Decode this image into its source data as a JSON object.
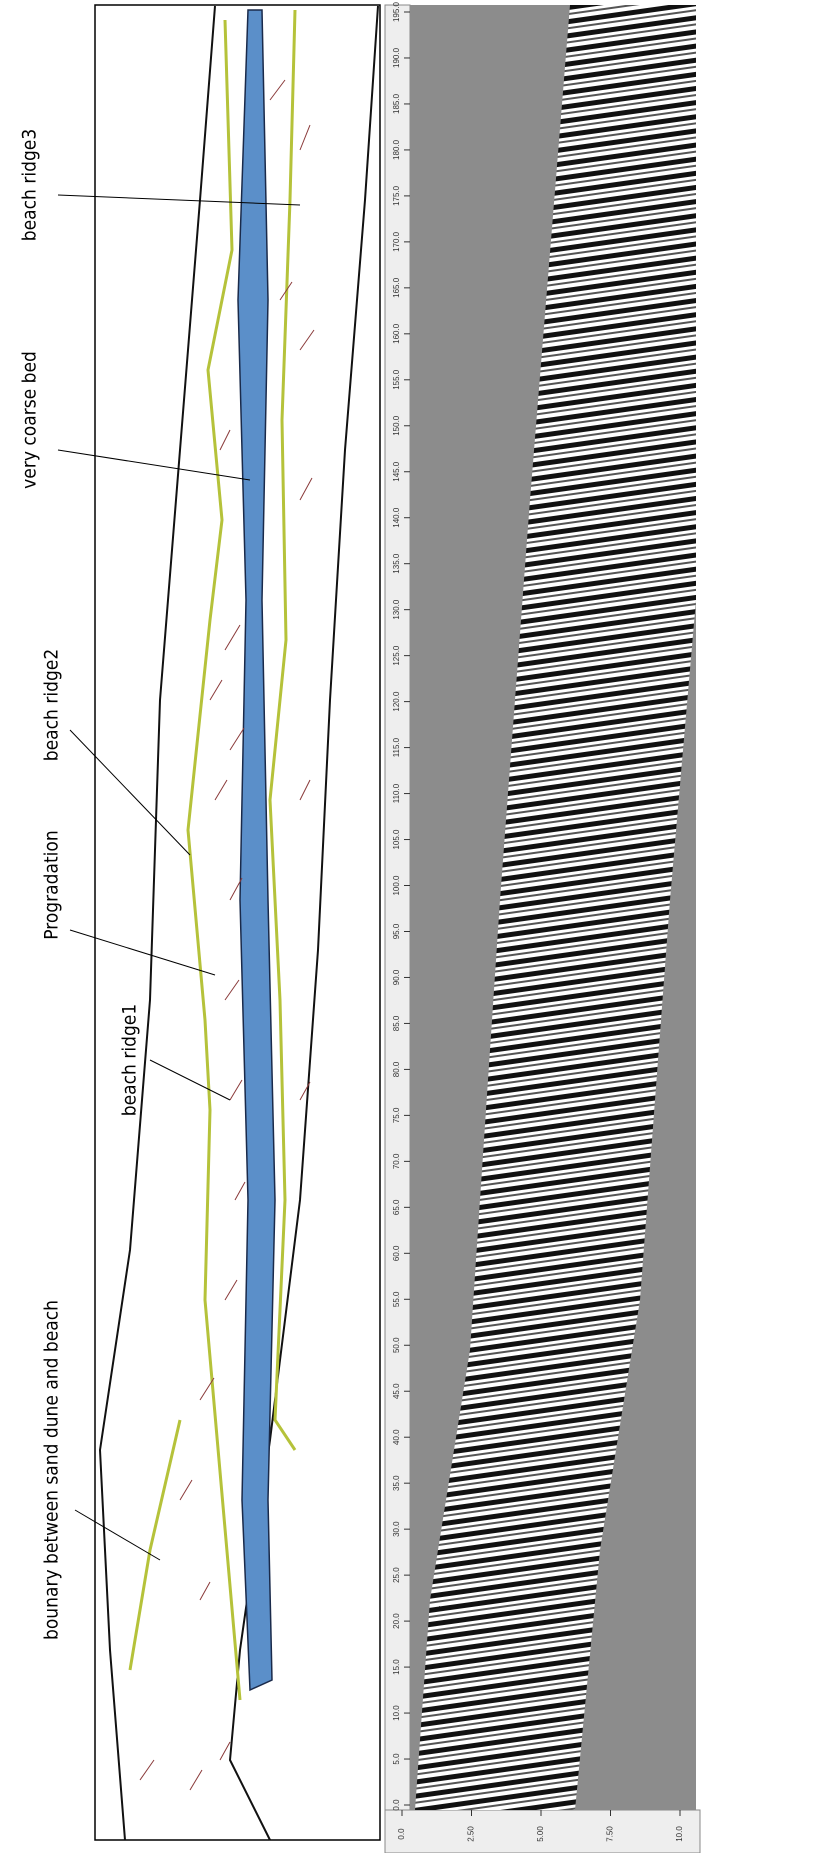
{
  "labels": [
    "beach ridge3",
    "very coarse bed",
    "beach ridge2",
    "Progradation",
    "bounary between sand dune and beach",
    "beach ridge1"
  ],
  "profile": {
    "distance_ticks": [
      {
        "value": 0,
        "label": "0.0"
      },
      {
        "value": 5,
        "label": "5.0"
      },
      {
        "value": 10,
        "label": "10.0"
      },
      {
        "value": 15,
        "label": "15.0"
      },
      {
        "value": 20,
        "label": "20.0"
      },
      {
        "value": 25,
        "label": "25.0"
      },
      {
        "value": 30,
        "label": "30.0"
      },
      {
        "value": 35,
        "label": "35.0"
      },
      {
        "value": 40,
        "label": "40.0"
      },
      {
        "value": 45,
        "label": "45.0"
      },
      {
        "value": 50,
        "label": "50.0"
      },
      {
        "value": 55,
        "label": "55.0"
      },
      {
        "value": 60,
        "label": "60.0"
      },
      {
        "value": 65,
        "label": "65.0"
      },
      {
        "value": 70,
        "label": "70.0"
      },
      {
        "value": 75,
        "label": "75.0"
      },
      {
        "value": 80,
        "label": "80.0"
      },
      {
        "value": 85,
        "label": "85.0"
      },
      {
        "value": 90,
        "label": "90.0"
      },
      {
        "value": 95,
        "label": "95.0"
      },
      {
        "value": 100,
        "label": "100.0"
      },
      {
        "value": 105,
        "label": "105.0"
      },
      {
        "value": 110,
        "label": "110.0"
      },
      {
        "value": 115,
        "label": "115.0"
      },
      {
        "value": 120,
        "label": "120.0"
      },
      {
        "value": 125,
        "label": "125.0"
      },
      {
        "value": 130,
        "label": "130.0"
      },
      {
        "value": 135,
        "label": "135.0"
      },
      {
        "value": 140,
        "label": "140.0"
      },
      {
        "value": 145,
        "label": "145.0"
      },
      {
        "value": 150,
        "label": "150.0"
      },
      {
        "value": 155,
        "label": "155.0"
      },
      {
        "value": 160,
        "label": "160.0"
      },
      {
        "value": 165,
        "label": "165.0"
      },
      {
        "value": 170,
        "label": "170.0"
      },
      {
        "value": 175,
        "label": "175.0"
      },
      {
        "value": 180,
        "label": "180.0"
      },
      {
        "value": 185,
        "label": "185.0"
      },
      {
        "value": 190,
        "label": "190.0"
      },
      {
        "value": 195,
        "label": "195.0"
      }
    ],
    "depth_ticks": [
      {
        "value": 0,
        "label": "0.0"
      },
      {
        "value": 2.5,
        "label": "2.50"
      },
      {
        "value": 5,
        "label": "5.00"
      },
      {
        "value": 7.5,
        "label": "7.50"
      },
      {
        "value": 10,
        "label": "10.0"
      }
    ]
  }
}
